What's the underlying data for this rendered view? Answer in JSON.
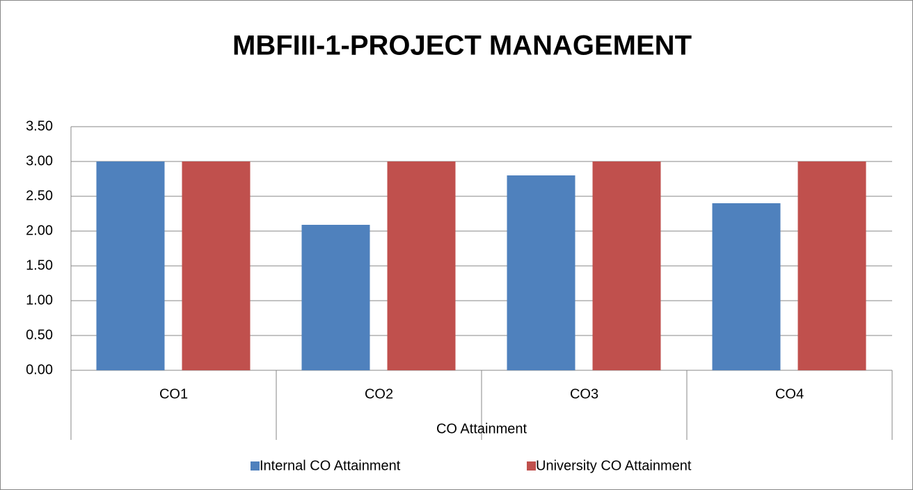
{
  "chart_data": {
    "type": "bar",
    "title": "MBFIII-1-PROJECT MANAGEMENT",
    "categories": [
      "CO1",
      "CO2",
      "CO3",
      "CO4"
    ],
    "category_group": "CO Attainment",
    "series": [
      {
        "name": "Internal CO Attainment",
        "color": "#4f81bd",
        "values": [
          3.0,
          2.09,
          2.8,
          2.4
        ]
      },
      {
        "name": "University CO Attainment",
        "color": "#c0504d",
        "values": [
          3.0,
          3.0,
          3.0,
          3.0
        ]
      }
    ],
    "ylim": [
      0,
      3.5
    ],
    "yticks": [
      {
        "value": 0,
        "label": "0.00"
      },
      {
        "value": 0.5,
        "label": "0.50"
      },
      {
        "value": 1,
        "label": "1.00"
      },
      {
        "value": 1.5,
        "label": "1.50"
      },
      {
        "value": 2,
        "label": "2.00"
      },
      {
        "value": 2.5,
        "label": "2.50"
      },
      {
        "value": 3,
        "label": "3.00"
      },
      {
        "value": 3.5,
        "label": "3.50"
      }
    ],
    "grid": true,
    "legend": "bottom"
  }
}
